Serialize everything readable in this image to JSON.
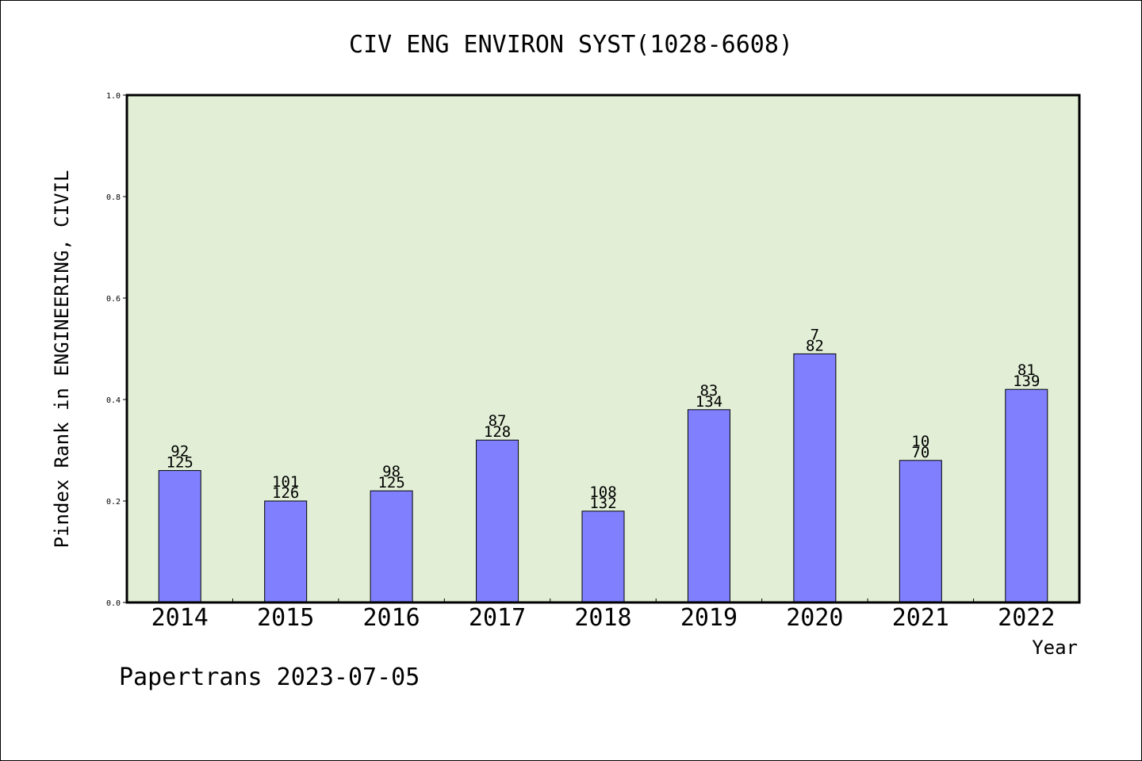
{
  "chart_data": {
    "type": "bar",
    "title": "CIV ENG ENVIRON SYST(1028-6608)",
    "xlabel": "Year",
    "ylabel": "Pindex Rank in ENGINEERING, CIVIL",
    "ylim": [
      0,
      1.0
    ],
    "yticks": [
      "0.0",
      "0.2",
      "0.4",
      "0.6",
      "0.8",
      "1.0"
    ],
    "categories": [
      "2014",
      "2015",
      "2016",
      "2017",
      "2018",
      "2019",
      "2020",
      "2021",
      "2022"
    ],
    "values": [
      0.26,
      0.2,
      0.22,
      0.32,
      0.18,
      0.38,
      0.49,
      0.28,
      0.42
    ],
    "rank_labels": [
      "92",
      "101",
      "98",
      "87",
      "108",
      "83",
      "7",
      "10",
      "81"
    ],
    "total_labels": [
      "125",
      "126",
      "125",
      "128",
      "132",
      "134",
      "82",
      "70",
      "139"
    ],
    "grid": false,
    "legend": "none",
    "colors": {
      "plot_background": "#e2efd6",
      "bar_fill": "#8080ff",
      "bar_stroke": "#000000"
    }
  },
  "footer": {
    "credit": "Papertrans 2023-07-05"
  }
}
